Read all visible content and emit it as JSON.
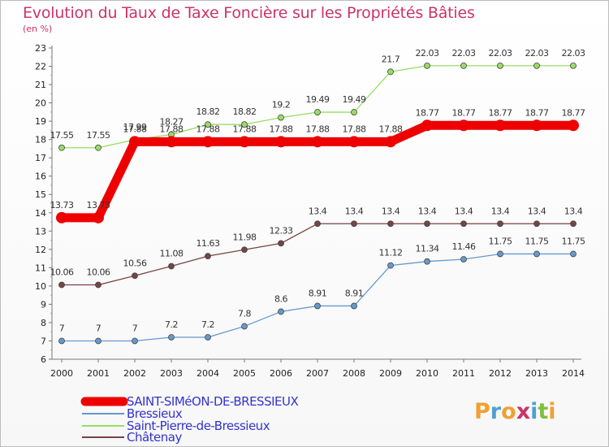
{
  "title": "Evolution du Taux de Taxe Foncière sur les Propriétés Bâties",
  "unit": "(en %)",
  "logo": {
    "text": "Proxiti",
    "colors": [
      "#f0a030",
      "#50a0d0",
      "#f0a030",
      "#cc3366",
      "#50a0d0",
      "#80c040",
      "#f0a030"
    ]
  },
  "chart_data": {
    "type": "line",
    "title": "Evolution du Taux de Taxe Foncière sur les Propriétés Bâties",
    "ylabel": "(en %)",
    "xlabel": "",
    "x": [
      "2000",
      "2001",
      "2002",
      "2003",
      "2004",
      "2005",
      "2006",
      "2007",
      "2008",
      "2009",
      "2010",
      "2011",
      "2012",
      "2013",
      "2014"
    ],
    "ylim": [
      6,
      23
    ],
    "yticks": [
      "6",
      "7",
      "8",
      "9",
      "10",
      "11",
      "12",
      "13",
      "14",
      "15",
      "16",
      "17",
      "18",
      "19",
      "20",
      "21",
      "22",
      "23"
    ],
    "grid": false,
    "legend_position": "bottom-left",
    "series": [
      {
        "name": "SAINT-SIMéON-DE-BRESSIEUX",
        "color": "#ee0000",
        "bold": true,
        "values": [
          13.73,
          13.73,
          17.88,
          17.88,
          17.88,
          17.88,
          17.88,
          17.88,
          17.88,
          17.88,
          18.77,
          18.77,
          18.77,
          18.77,
          18.77
        ],
        "labels": [
          "13.73",
          "13.73",
          "17.88",
          "17.88",
          "17.88",
          "17.88",
          "17.88",
          "17.88",
          "17.88",
          "17.88",
          "18.77",
          "18.77",
          "18.77",
          "18.77",
          "18.77"
        ]
      },
      {
        "name": "Bressieux",
        "color": "#6699cc",
        "values": [
          7,
          7,
          7,
          7.2,
          7.2,
          7.8,
          8.6,
          8.91,
          8.91,
          11.12,
          11.34,
          11.46,
          11.75,
          11.75,
          11.75
        ],
        "labels": [
          "7",
          "7",
          "7",
          "7.2",
          "7.2",
          "7.8",
          "8.6",
          "8.91",
          "8.91",
          "11.12",
          "11.34",
          "11.46",
          "11.75",
          "11.75",
          "11.75"
        ]
      },
      {
        "name": "Saint-Pierre-de-Bressieux",
        "color": "#99dd66",
        "values": [
          17.55,
          17.55,
          17.99,
          18.27,
          18.82,
          18.82,
          19.2,
          19.49,
          19.49,
          21.7,
          22.03,
          22.03,
          22.03,
          22.03,
          22.03
        ],
        "labels": [
          "17.55",
          "17.55",
          "17.99",
          "18.27",
          "18.82",
          "18.82",
          "19.2",
          "19.49",
          "19.49",
          "21.7",
          "22.03",
          "22.03",
          "22.03",
          "22.03",
          "22.03"
        ]
      },
      {
        "name": "Châtenay",
        "color": "#774444",
        "values": [
          10.06,
          10.06,
          10.56,
          11.08,
          11.63,
          11.98,
          12.33,
          13.4,
          13.4,
          13.4,
          13.4,
          13.4,
          13.4,
          13.4,
          13.4
        ],
        "labels": [
          "10.06",
          "10.06",
          "10.56",
          "11.08",
          "11.63",
          "11.98",
          "12.33",
          "13.4",
          "13.4",
          "13.4",
          "13.4",
          "13.4",
          "13.4",
          "13.4",
          "13.4"
        ]
      }
    ]
  }
}
